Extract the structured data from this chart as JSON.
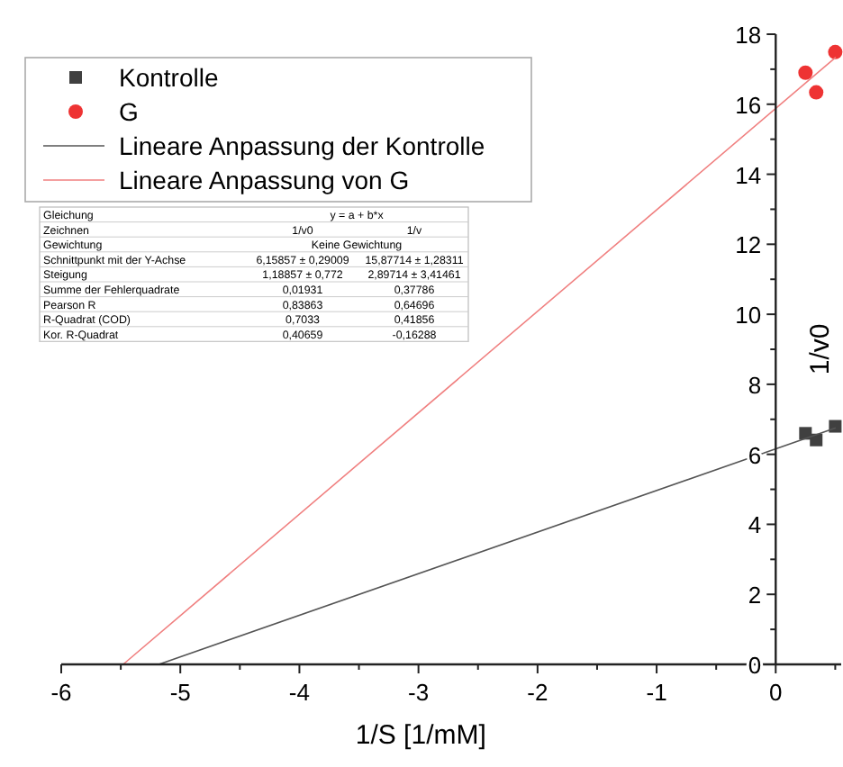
{
  "chart_data": {
    "type": "scatter",
    "xlabel": "1/S [1/mM]",
    "ylabel": "1/v0",
    "xlim": [
      -6,
      0.55
    ],
    "ylim": [
      0,
      18
    ],
    "xticks": [
      -6,
      {
        "value": -5.5,
        "label": null
      },
      -5,
      {
        "value": -4.5,
        "label": null
      },
      -4,
      {
        "value": -3.5,
        "label": null
      },
      -3,
      {
        "value": -2.5,
        "label": null
      },
      -2,
      {
        "value": -1.5,
        "label": null
      },
      -1,
      {
        "value": -0.5,
        "label": null
      },
      0,
      {
        "value": 0.5,
        "label": null
      }
    ],
    "yticks": [
      0,
      {
        "value": 1,
        "label": null
      },
      2,
      {
        "value": 3,
        "label": null
      },
      4,
      {
        "value": 5,
        "label": null
      },
      6,
      {
        "value": 7,
        "label": null
      },
      8,
      {
        "value": 9,
        "label": null
      },
      10,
      {
        "value": 11,
        "label": null
      },
      12,
      {
        "value": 13,
        "label": null
      },
      14,
      {
        "value": 15,
        "label": null
      },
      16,
      {
        "value": 17,
        "label": null
      },
      18
    ],
    "grid": false,
    "legend": "top left",
    "series": [
      {
        "name": "Kontrolle",
        "marker": "square",
        "color": "#404040",
        "x": [
          0.25,
          0.34,
          0.5
        ],
        "values": [
          6.6,
          6.41,
          6.8
        ]
      },
      {
        "name": "G",
        "marker": "circle",
        "color": "#ee3333",
        "x": [
          0.25,
          0.34,
          0.5
        ],
        "values": [
          16.9,
          16.34,
          17.49
        ]
      },
      {
        "name": "Lineare Anpassung der Kontrolle",
        "type": "line",
        "marker": "none",
        "color": "#555555",
        "x": [
          -5.18,
          0.5
        ],
        "values": [
          0,
          6.75
        ]
      },
      {
        "name": "Lineare Anpassung von G",
        "type": "line",
        "marker": "none",
        "color": "#f08080",
        "x": [
          -5.48,
          0.5
        ],
        "values": [
          0,
          17.33
        ]
      }
    ],
    "annotations": [
      "Gleichung",
      "y = a + b*x",
      "Zeichnen",
      "1/v0",
      "1/v",
      "Gewichtung",
      "Keine Gewichtung",
      "Schnittpunkt mit der Y-Achse",
      "6,15857 ± 0,29009",
      "15,87714 ± 1,28311",
      "Steigung",
      "1,18857 ± 0,772",
      "2,89714 ± 3,41461",
      "Summe der Fehlerquadrate",
      "0,01931",
      "0,37786",
      "Pearson R",
      "0,83863",
      "0,64696",
      "R-Quadrat (COD)",
      "0,7033",
      "0,41856",
      "Kor. R-Quadrat",
      "0,40659",
      "-0,16288"
    ]
  }
}
